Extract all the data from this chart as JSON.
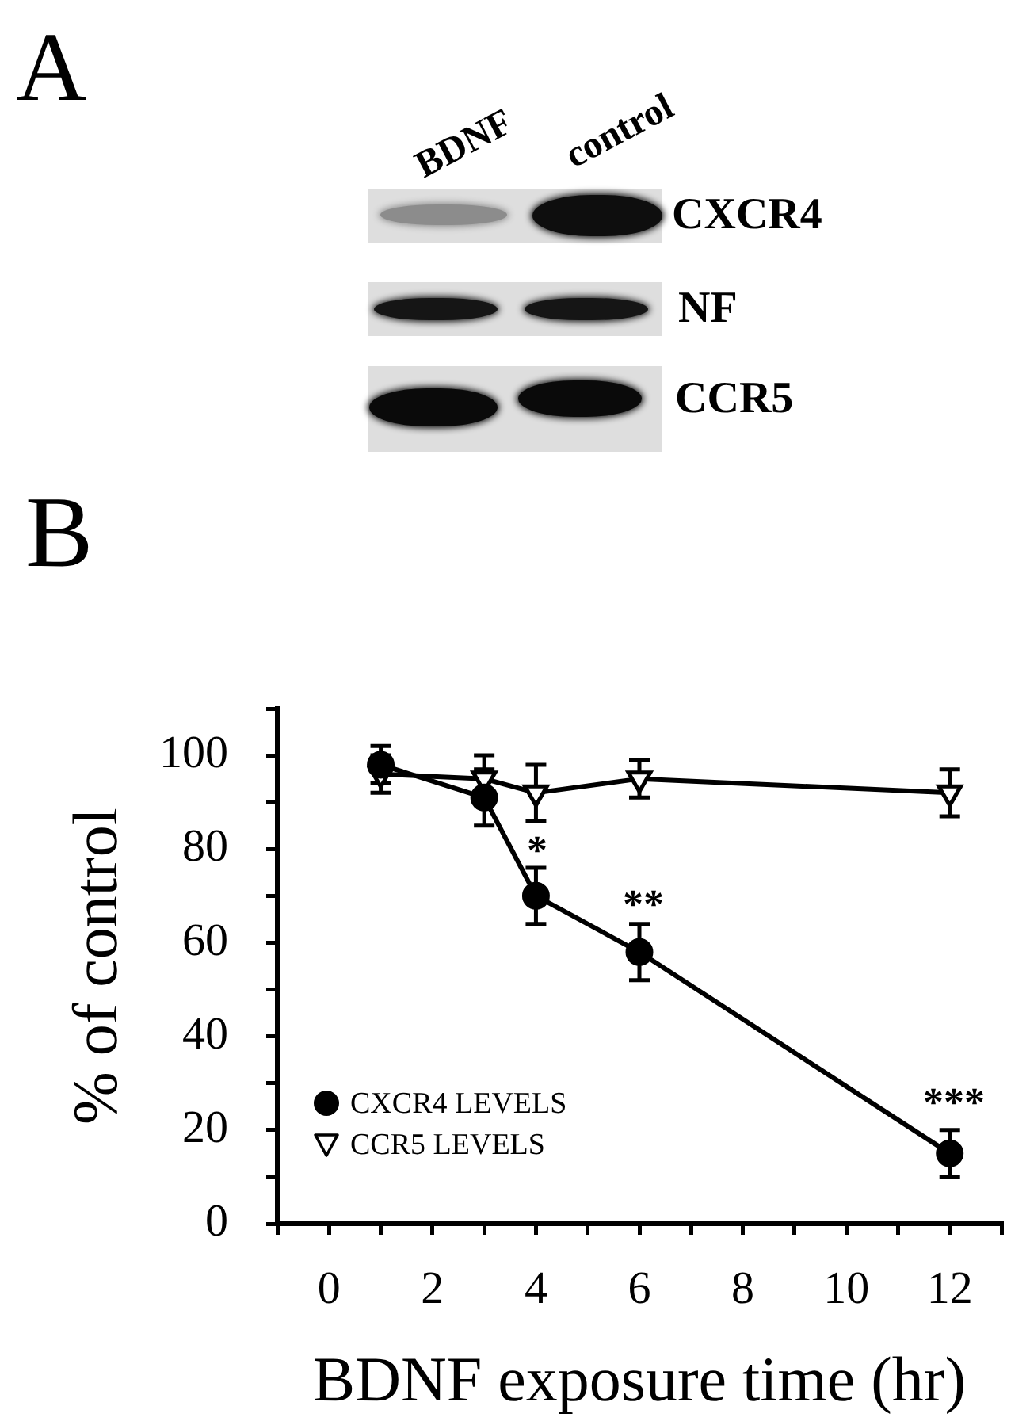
{
  "chart_data": {
    "type": "line",
    "xlabel": "BDNF exposure time (hr)",
    "ylabel": "% of control",
    "annotations": [
      "A",
      "BDNF",
      "control",
      "CXCR4",
      "NF",
      "CCR5",
      "B",
      "*",
      "**",
      "***"
    ],
    "x": [
      1,
      3,
      4,
      6,
      12
    ],
    "series": [
      {
        "name": "CXCR4 LEVELS",
        "color": "#000000",
        "marker": "circle",
        "values": [
          98,
          91,
          70,
          58,
          15
        ],
        "errors": [
          4,
          6,
          6,
          6,
          5
        ]
      },
      {
        "name": "CCR5 LEVELS",
        "color": "#000000",
        "marker": "triangle",
        "values": [
          96,
          95,
          92,
          95,
          92
        ],
        "errors": [
          4,
          5,
          6,
          4,
          5
        ]
      }
    ],
    "xlim": [
      -1,
      13
    ],
    "xticks": [
      {
        "value": -1,
        "label": null
      },
      0,
      {
        "value": 1,
        "label": null
      },
      2,
      {
        "value": 3,
        "label": null
      },
      4,
      {
        "value": 5,
        "label": null
      },
      6,
      {
        "value": 7,
        "label": null
      },
      8,
      {
        "value": 9,
        "label": null
      },
      10,
      {
        "value": 11,
        "label": null
      },
      12,
      {
        "value": 13,
        "label": null
      }
    ],
    "ylim": [
      0,
      110
    ],
    "yticks": [
      0,
      {
        "value": 10,
        "label": null
      },
      20,
      {
        "value": 30,
        "label": null
      },
      40,
      {
        "value": 50,
        "label": null
      },
      60,
      {
        "value": 70,
        "label": null
      },
      80,
      {
        "value": 90,
        "label": null
      },
      100,
      {
        "value": 110,
        "label": null
      }
    ],
    "grid": false,
    "legend": "bottom left"
  }
}
